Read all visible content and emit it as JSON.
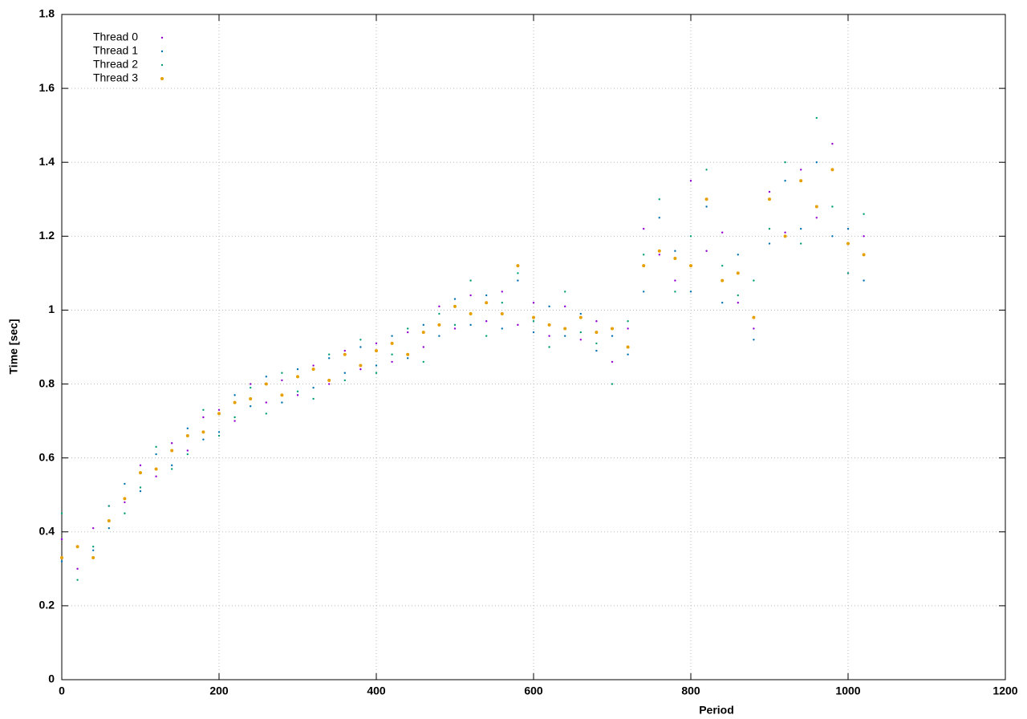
{
  "chart_data": {
    "type": "scatter",
    "x_label": "Period",
    "y_label": "Time [sec]",
    "xlim": [
      0,
      1200
    ],
    "xticks": [
      0,
      200,
      400,
      600,
      800,
      1000,
      1200
    ],
    "ylim": [
      0,
      1.8
    ],
    "yticks": [
      0,
      0.2,
      0.4,
      0.6,
      0.8,
      1,
      1.2,
      1.4,
      1.6,
      1.8
    ],
    "grid": true,
    "legend": "top-left",
    "x": [
      0,
      20,
      40,
      60,
      80,
      100,
      120,
      140,
      160,
      180,
      200,
      220,
      240,
      260,
      280,
      300,
      320,
      340,
      360,
      380,
      400,
      420,
      440,
      460,
      480,
      500,
      520,
      540,
      560,
      580,
      600,
      620,
      640,
      660,
      680,
      700,
      720,
      740,
      760,
      780,
      800,
      820,
      840,
      860,
      880,
      900,
      920,
      940,
      960,
      980,
      1000,
      1020
    ],
    "series": [
      {
        "name": "Thread 0",
        "color": "#9400d3",
        "values": [
          0.38,
          0.3,
          0.41,
          0.47,
          0.48,
          0.58,
          0.55,
          0.64,
          0.62,
          0.71,
          0.73,
          0.7,
          0.8,
          0.75,
          0.81,
          0.77,
          0.85,
          0.8,
          0.89,
          0.84,
          0.91,
          0.86,
          0.94,
          0.9,
          1.01,
          0.95,
          1.04,
          0.97,
          1.05,
          0.96,
          1.02,
          0.93,
          1.01,
          0.92,
          0.97,
          0.86,
          0.95,
          1.22,
          1.15,
          1.08,
          1.35,
          1.16,
          1.21,
          1.02,
          0.95,
          1.32,
          1.21,
          1.38,
          1.25,
          1.45,
          1.1,
          1.2
        ]
      },
      {
        "name": "Thread 1",
        "color": "#0072b2",
        "values": [
          0.32,
          0.36,
          0.35,
          0.41,
          0.53,
          0.51,
          0.61,
          0.58,
          0.68,
          0.65,
          0.67,
          0.77,
          0.74,
          0.82,
          0.75,
          0.84,
          0.79,
          0.87,
          0.83,
          0.9,
          0.85,
          0.93,
          0.87,
          0.96,
          0.93,
          1.03,
          0.96,
          1.04,
          0.95,
          1.08,
          0.94,
          1.01,
          0.93,
          0.99,
          0.89,
          0.93,
          0.88,
          1.05,
          1.25,
          1.16,
          1.05,
          1.28,
          1.02,
          1.15,
          0.92,
          1.18,
          1.35,
          1.22,
          1.4,
          1.2,
          1.22,
          1.08
        ]
      },
      {
        "name": "Thread 2",
        "color": "#009e73",
        "values": [
          0.45,
          0.27,
          0.36,
          0.47,
          0.45,
          0.52,
          0.63,
          0.57,
          0.61,
          0.73,
          0.66,
          0.71,
          0.79,
          0.72,
          0.83,
          0.78,
          0.76,
          0.88,
          0.81,
          0.92,
          0.83,
          0.88,
          0.95,
          0.86,
          0.99,
          0.96,
          1.08,
          0.93,
          1.02,
          1.1,
          0.97,
          0.9,
          1.05,
          0.94,
          0.91,
          0.8,
          0.97,
          1.15,
          1.3,
          1.05,
          1.2,
          1.38,
          1.12,
          1.04,
          1.08,
          1.22,
          1.4,
          1.18,
          1.52,
          1.28,
          1.1,
          1.26
        ]
      },
      {
        "name": "Thread 3",
        "color": "#e69f00",
        "values": [
          0.33,
          0.36,
          0.33,
          0.43,
          0.49,
          0.56,
          0.57,
          0.62,
          0.66,
          0.67,
          0.72,
          0.75,
          0.76,
          0.8,
          0.77,
          0.82,
          0.84,
          0.81,
          0.88,
          0.85,
          0.89,
          0.91,
          0.88,
          0.94,
          0.96,
          1.01,
          0.99,
          1.02,
          0.99,
          1.12,
          0.98,
          0.96,
          0.95,
          0.98,
          0.94,
          0.95,
          0.9,
          1.12,
          1.16,
          1.14,
          1.12,
          1.3,
          1.08,
          1.1,
          0.98,
          1.3,
          1.2,
          1.35,
          1.28,
          1.38,
          1.18,
          1.15
        ]
      }
    ]
  }
}
